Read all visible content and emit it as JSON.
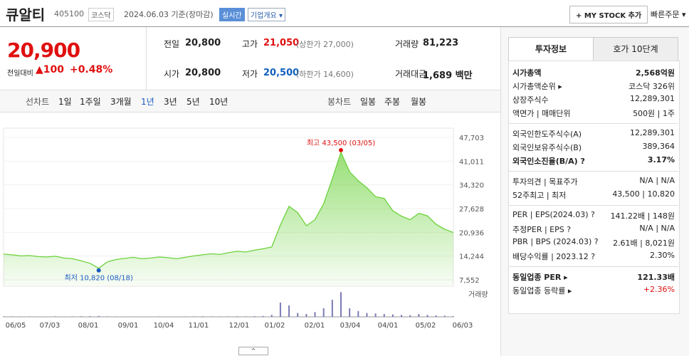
{
  "header": {
    "name": "큐알티",
    "code": "405100",
    "market": "코스닥",
    "date": "2024.06.03 기준(장마감)",
    "realtime": "실시간",
    "overview": "기업개요 ▾",
    "mystock": "+ MY STOCK 추가",
    "quick_order": "빠른주문 ▾"
  },
  "price": {
    "current": "20,900",
    "change_label": "전일대비",
    "change": "▲100",
    "change_rate": "+0.48%"
  },
  "quotes": [
    [
      {
        "label": "전일",
        "value": "20,800"
      },
      {
        "label": "고가",
        "value": "21,050",
        "note": "(상한가 27,000)",
        "color": "#e01010"
      },
      {
        "label": "거래량",
        "value": "81,223"
      }
    ],
    [
      {
        "label": "시가",
        "value": "20,800"
      },
      {
        "label": "저가",
        "value": "20,500",
        "note": "(하한가 14,600)",
        "color": "#1060c0"
      },
      {
        "label": "거래대금",
        "value": "1,689 백만"
      }
    ]
  ],
  "periods": {
    "line_label": "선차트",
    "line": [
      "1일",
      "1주일",
      "3개월",
      "1년",
      "3년",
      "5년",
      "10년"
    ],
    "active": 3,
    "candle_label": "봉차트",
    "candle": [
      "일봉",
      "주봉",
      "월봉"
    ]
  },
  "chart_data": {
    "type": "line",
    "color": "#6cd23c",
    "ylim": [
      7552,
      47703
    ],
    "yticks": [
      {
        "value": 47703,
        "label": "47,703"
      },
      {
        "value": 41011,
        "label": "41,011"
      },
      {
        "value": 34320,
        "label": "34,320"
      },
      {
        "value": 27628,
        "label": "27,628"
      },
      {
        "value": 20936,
        "label": "20,936"
      },
      {
        "value": 14244,
        "label": "14,244"
      },
      {
        "value": 7552,
        "label": "7,552"
      }
    ],
    "x_labels": [
      "06/05",
      "07/03",
      "08/01",
      "09/01",
      "10/04",
      "11/01",
      "12/01",
      "01/02",
      "02/01",
      "03/04",
      "04/01",
      "05/02",
      "06/03"
    ],
    "values": [
      14800,
      14600,
      14300,
      14400,
      14100,
      14000,
      14200,
      13700,
      13500,
      12900,
      12200,
      10820,
      12600,
      13300,
      13600,
      13900,
      13500,
      13700,
      14000,
      13800,
      13500,
      13900,
      14300,
      14600,
      14900,
      14700,
      15200,
      15600,
      15400,
      15900,
      16300,
      16800,
      23000,
      28300,
      26500,
      22800,
      24500,
      29000,
      36000,
      43500,
      38000,
      35500,
      33500,
      31000,
      30500,
      27000,
      25500,
      24500,
      26300,
      25600,
      23200,
      21800,
      20900
    ],
    "high_label": "최고 43,500 (03/05)",
    "low_label": "최저 10,820 (08/18)",
    "volume_label": "거래량",
    "volume_lim": [
      0,
      3000000
    ],
    "volume": [
      60000,
      50000,
      40000,
      45000,
      40000,
      35000,
      50000,
      40000,
      45000,
      60000,
      70000,
      90000,
      50000,
      40000,
      35000,
      40000,
      30000,
      35000,
      40000,
      30000,
      35000,
      40000,
      50000,
      60000,
      45000,
      40000,
      50000,
      60000,
      50000,
      70000,
      90000,
      200000,
      1500000,
      1200000,
      400000,
      300000,
      500000,
      900000,
      1800000,
      2600000,
      900000,
      600000,
      400000,
      350000,
      300000,
      250000,
      200000,
      180000,
      300000,
      200000,
      150000,
      120000,
      81223
    ]
  },
  "info": {
    "tabs": [
      "투자정보",
      "호가 10단계"
    ],
    "active": 0,
    "sections": [
      [
        {
          "label": "시가총액",
          "value": "2,568억원",
          "bold": true
        },
        {
          "label": "시가총액순위 ▸",
          "value": "코스닥 326위"
        },
        {
          "label": "상장주식수",
          "value": "12,289,301"
        },
        {
          "label": "액면가 | 매매단위",
          "value": "500원 | 1주"
        }
      ],
      [
        {
          "label": "외국인한도주식수(A)",
          "value": "12,289,301"
        },
        {
          "label": "외국인보유주식수(B)",
          "value": "389,364"
        },
        {
          "label": "외국인소진율(B/A) ?",
          "value": "3.17%",
          "bold": true
        }
      ],
      [
        {
          "label": "투자의견 | 목표주가",
          "value": "N/A | N/A"
        },
        {
          "label": "52주최고 | 최저",
          "value": "43,500 | 10,820"
        }
      ],
      [
        {
          "label": "PER | EPS(2024.03) ?",
          "value": "141.22배 | 148원"
        },
        {
          "label": "추정PER | EPS ?",
          "value": "N/A | N/A"
        },
        {
          "label": "PBR | BPS (2024.03) ?",
          "value": "2.61배 | 8,021원"
        },
        {
          "label": "배당수익률 | 2023.12 ?",
          "value": "2.30%"
        }
      ],
      [
        {
          "label": "동일업종 PER ▸",
          "value": "121.33배",
          "bold": true
        },
        {
          "label": "동일업종 등락률 ▸",
          "value": "+2.36%",
          "color": "#e01010"
        }
      ]
    ]
  }
}
